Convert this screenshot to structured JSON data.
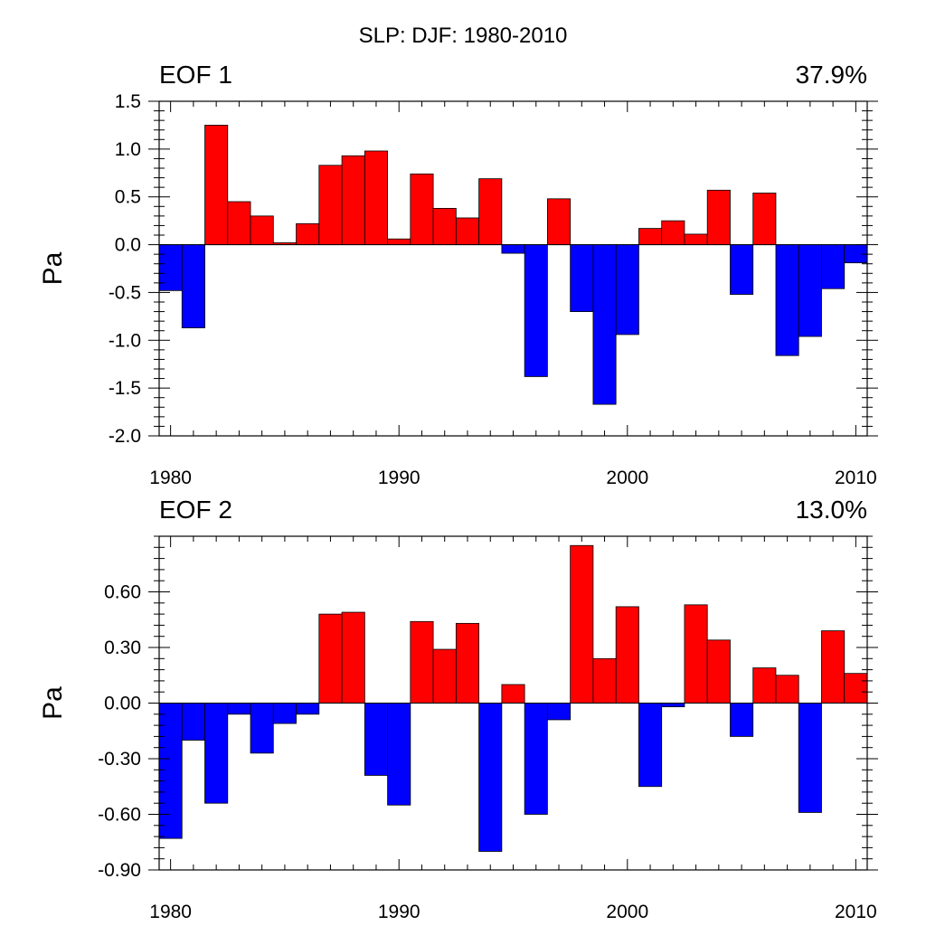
{
  "title": "SLP: DJF: 1980-2010",
  "colors": {
    "positive": "#ff0000",
    "negative": "#0000ff",
    "axis": "#000000",
    "background": "#ffffff"
  },
  "chart_data": [
    {
      "type": "bar",
      "panel_label": "EOF 1",
      "percent_label": "37.9%",
      "ylabel": "Pa",
      "xlim": [
        1979.5,
        2010.5
      ],
      "ylim": [
        -2.0,
        1.5
      ],
      "x_ticks": [
        1980,
        1990,
        2000,
        2010
      ],
      "y_ticks": [
        -2.0,
        -1.5,
        -1.0,
        -0.5,
        0.0,
        0.5,
        1.0,
        1.5
      ],
      "y_tick_labels": [
        "-2.0",
        "-1.5",
        "-1.0",
        "-0.5",
        "0.0",
        "0.5",
        "1.0",
        "1.5"
      ],
      "x": [
        1980,
        1981,
        1982,
        1983,
        1984,
        1985,
        1986,
        1987,
        1988,
        1989,
        1990,
        1991,
        1992,
        1993,
        1994,
        1995,
        1996,
        1997,
        1998,
        1999,
        2000,
        2001,
        2002,
        2003,
        2004,
        2005,
        2006,
        2007,
        2008,
        2009,
        2010
      ],
      "values": [
        -0.48,
        -0.87,
        1.25,
        0.45,
        0.3,
        0.02,
        0.22,
        0.83,
        0.93,
        0.98,
        0.06,
        0.74,
        0.38,
        0.28,
        0.69,
        -0.09,
        -1.38,
        0.48,
        -0.7,
        -1.67,
        -0.94,
        0.17,
        0.25,
        0.11,
        0.57,
        -0.52,
        0.54,
        -1.16,
        -0.96,
        -0.46,
        -0.19
      ]
    },
    {
      "type": "bar",
      "panel_label": "EOF 2",
      "percent_label": "13.0%",
      "ylabel": "Pa",
      "xlim": [
        1979.5,
        2010.5
      ],
      "ylim": [
        -0.9,
        0.9
      ],
      "x_ticks": [
        1980,
        1990,
        2000,
        2010
      ],
      "y_ticks": [
        -0.9,
        -0.6,
        -0.3,
        0.0,
        0.3,
        0.6
      ],
      "y_tick_labels": [
        "-0.90",
        "-0.60",
        "-0.30",
        "0.00",
        "0.30",
        "0.60"
      ],
      "x": [
        1980,
        1981,
        1982,
        1983,
        1984,
        1985,
        1986,
        1987,
        1988,
        1989,
        1990,
        1991,
        1992,
        1993,
        1994,
        1995,
        1996,
        1997,
        1998,
        1999,
        2000,
        2001,
        2002,
        2003,
        2004,
        2005,
        2006,
        2007,
        2008,
        2009,
        2010
      ],
      "values": [
        -0.73,
        -0.2,
        -0.54,
        -0.06,
        -0.27,
        -0.11,
        -0.06,
        0.48,
        0.49,
        -0.39,
        -0.55,
        0.44,
        0.29,
        0.43,
        -0.8,
        0.1,
        -0.6,
        -0.09,
        0.85,
        0.24,
        0.52,
        -0.45,
        -0.02,
        0.53,
        0.34,
        -0.18,
        0.19,
        0.15,
        -0.59,
        0.39,
        0.16
      ]
    }
  ]
}
